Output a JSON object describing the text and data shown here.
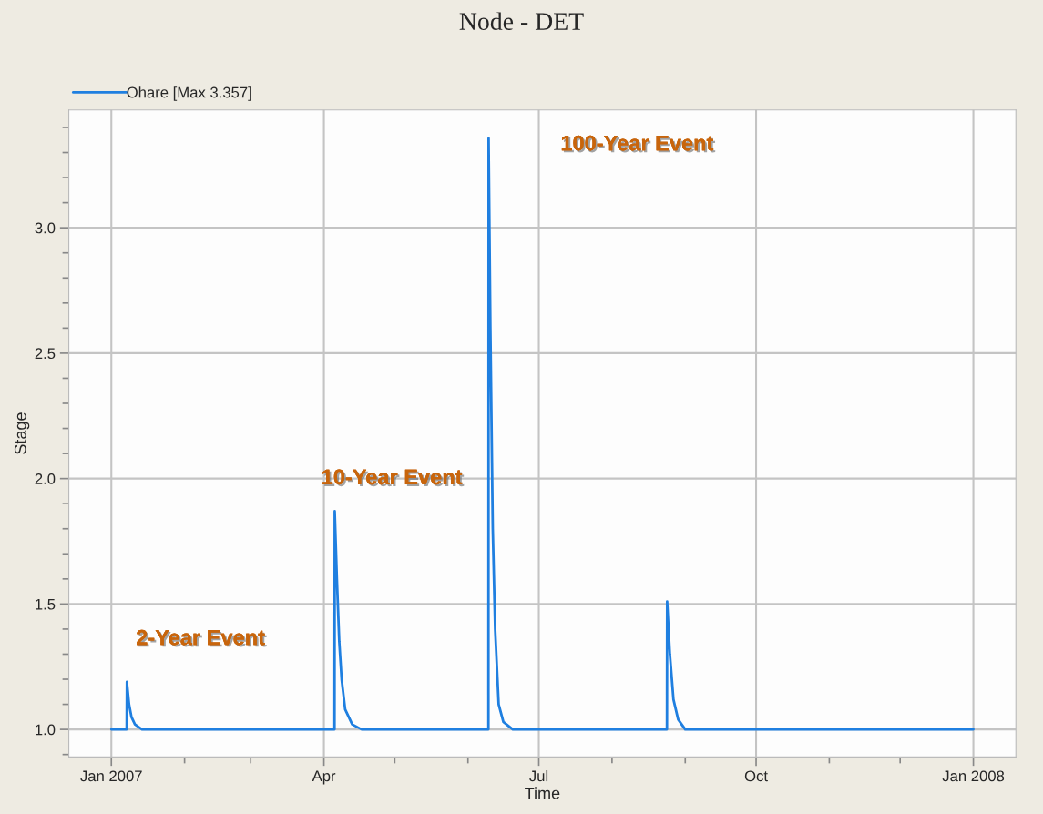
{
  "chart_data": {
    "type": "line",
    "title": "Node - DET",
    "xlabel": "Time",
    "ylabel": "Stage",
    "series": [
      {
        "name": "Ohare [Max 3.357]",
        "color": "#1f7fe0",
        "x": [
          "2007-01-01T00:00",
          "2007-01-07T12:00",
          "2007-01-07T14:00",
          "2007-01-08T12:00",
          "2007-01-09T12:00",
          "2007-01-11T00:00",
          "2007-01-14T00:00",
          "2007-04-05T12:00",
          "2007-04-05T14:00",
          "2007-04-06T12:00",
          "2007-04-07T12:00",
          "2007-04-08T12:00",
          "2007-04-10T00:00",
          "2007-04-13T00:00",
          "2007-04-17T00:00",
          "2007-06-09T16:00",
          "2007-06-09T18:00",
          "2007-06-10T12:00",
          "2007-06-11T12:00",
          "2007-06-12T12:00",
          "2007-06-14T00:00",
          "2007-06-16T00:00",
          "2007-06-20T00:00",
          "2007-08-24T06:00",
          "2007-08-24T08:00",
          "2007-08-25T12:00",
          "2007-08-27T00:00",
          "2007-08-29T00:00",
          "2007-09-01T00:00",
          "2008-01-01T00:00"
        ],
        "values": [
          1.0,
          1.0,
          1.19,
          1.1,
          1.05,
          1.02,
          1.0,
          1.0,
          1.87,
          1.6,
          1.35,
          1.2,
          1.08,
          1.02,
          1.0,
          1.0,
          3.357,
          2.6,
          1.8,
          1.4,
          1.1,
          1.03,
          1.0,
          1.0,
          1.51,
          1.3,
          1.12,
          1.04,
          1.0,
          1.0
        ]
      }
    ],
    "xlim": [
      "2006-12-14",
      "2008-01-19"
    ],
    "xticks": [
      {
        "value": "2007-01-01",
        "label": "Jan 2007"
      },
      {
        "value": "2007-02-01",
        "label": null
      },
      {
        "value": "2007-03-01",
        "label": null
      },
      {
        "value": "2007-04-01",
        "label": "Apr"
      },
      {
        "value": "2007-05-01",
        "label": null
      },
      {
        "value": "2007-06-01",
        "label": null
      },
      {
        "value": "2007-07-01",
        "label": "Jul"
      },
      {
        "value": "2007-08-01",
        "label": null
      },
      {
        "value": "2007-09-01",
        "label": null
      },
      {
        "value": "2007-10-01",
        "label": "Oct"
      },
      {
        "value": "2007-11-01",
        "label": null
      },
      {
        "value": "2007-12-01",
        "label": null
      },
      {
        "value": "2008-01-01",
        "label": "Jan 2008"
      }
    ],
    "ylim": [
      0.89,
      3.47
    ],
    "yticks": [
      {
        "value": 0.9,
        "label": null
      },
      {
        "value": 1.0,
        "label": "1.0"
      },
      {
        "value": 1.1,
        "label": null
      },
      {
        "value": 1.2,
        "label": null
      },
      {
        "value": 1.3,
        "label": null
      },
      {
        "value": 1.4,
        "label": null
      },
      1.5,
      {
        "value": 1.6,
        "label": null
      },
      {
        "value": 1.7,
        "label": null
      },
      {
        "value": 1.8,
        "label": null
      },
      {
        "value": 1.9,
        "label": null
      },
      {
        "value": 2.0,
        "label": "2.0"
      },
      {
        "value": 2.1,
        "label": null
      },
      {
        "value": 2.2,
        "label": null
      },
      {
        "value": 2.3,
        "label": null
      },
      {
        "value": 2.4,
        "label": null
      },
      2.5,
      {
        "value": 2.6,
        "label": null
      },
      {
        "value": 2.7,
        "label": null
      },
      {
        "value": 2.8,
        "label": null
      },
      {
        "value": 2.9,
        "label": null
      },
      {
        "value": 3.0,
        "label": "3.0"
      },
      {
        "value": 3.1,
        "label": null
      },
      {
        "value": 3.2,
        "label": null
      },
      {
        "value": 3.3,
        "label": null
      },
      {
        "value": 3.4,
        "label": null
      }
    ],
    "grid": true,
    "legend": "top left",
    "line_style": "solid",
    "marker": "none",
    "annotations": [
      "2-Year Event",
      "10-Year Event",
      "100-Year Event"
    ]
  }
}
